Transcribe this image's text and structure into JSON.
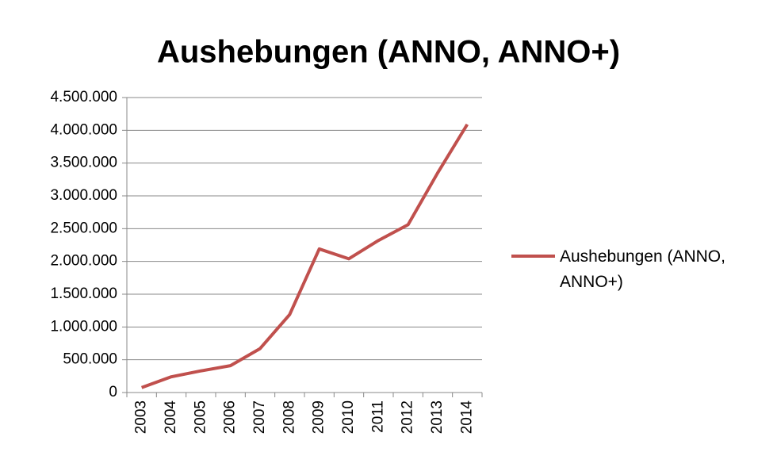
{
  "chart_data": {
    "type": "line",
    "title": "Aushebungen (ANNO, ANNO+)",
    "categories": [
      "2003",
      "2004",
      "2005",
      "2006",
      "2007",
      "2008",
      "2009",
      "2010",
      "2011",
      "2012",
      "2013",
      "2014"
    ],
    "series": [
      {
        "name": "Aushebungen (ANNO, ANNO+)",
        "color": "#c0504d",
        "values": [
          75000,
          240000,
          330000,
          410000,
          670000,
          1190000,
          2190000,
          2040000,
          2320000,
          2560000,
          3350000,
          4090000
        ]
      }
    ],
    "ylim": [
      0,
      4500000
    ],
    "yticks": [
      0,
      {
        "value": 500000,
        "label": "500.000"
      },
      {
        "value": 1000000,
        "label": "1.000.000"
      },
      {
        "value": 1500000,
        "label": "1.500.000"
      },
      {
        "value": 2000000,
        "label": "2.000.000"
      },
      {
        "value": 2500000,
        "label": "2.500.000"
      },
      {
        "value": 3000000,
        "label": "3.000.000"
      },
      {
        "value": 3500000,
        "label": "3.500.000"
      },
      {
        "value": 4000000,
        "label": "4.000.000"
      },
      {
        "value": 4500000,
        "label": "4.500.000"
      }
    ],
    "grid": true,
    "legend": "right"
  }
}
